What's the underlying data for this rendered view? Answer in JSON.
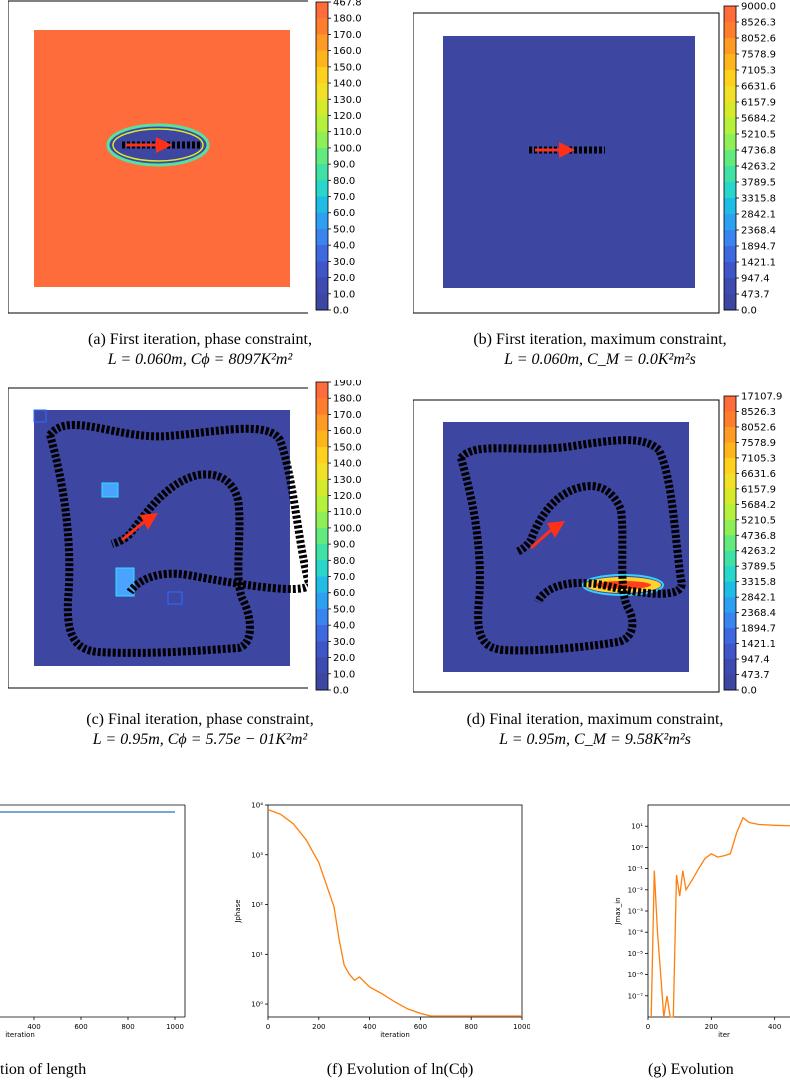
{
  "colorbars": {
    "a": [
      "467.8",
      "180.0",
      "170.0",
      "160.0",
      "150.0",
      "140.0",
      "130.0",
      "120.0",
      "110.0",
      "100.0",
      "90.0",
      "80.0",
      "70.0",
      "60.0",
      "50.0",
      "40.0",
      "30.0",
      "20.0",
      "10.0",
      "0.0"
    ],
    "b": [
      "9000.0",
      "8526.3",
      "8052.6",
      "7578.9",
      "7105.3",
      "6631.6",
      "6157.9",
      "5684.2",
      "5210.5",
      "4736.8",
      "4263.2",
      "3789.5",
      "3315.8",
      "2842.1",
      "2368.4",
      "1894.7",
      "1421.1",
      "947.4",
      "473.7",
      "0.0"
    ],
    "c": [
      "190.0",
      "180.0",
      "170.0",
      "160.0",
      "150.0",
      "140.0",
      "130.0",
      "120.0",
      "110.0",
      "100.0",
      "90.0",
      "80.0",
      "70.0",
      "60.0",
      "50.0",
      "40.0",
      "30.0",
      "20.0",
      "10.0",
      "0.0"
    ],
    "d": [
      "17107.9",
      "8526.3",
      "8052.6",
      "7578.9",
      "7105.3",
      "6631.6",
      "6157.9",
      "5684.2",
      "5210.5",
      "4736.8",
      "4263.2",
      "3789.5",
      "3315.8",
      "2842.1",
      "2368.4",
      "1894.7",
      "1421.1",
      "947.4",
      "473.7",
      "0.0"
    ]
  },
  "captions": {
    "a1": "(a) First iteration, phase constraint,",
    "a2": "L = 0.060m, Cϕ = 8097K²m²",
    "b1": "(b) First iteration, maximum constraint,",
    "b2": "L = 0.060m, C_M = 0.0K²m²s",
    "c1": "(c) Final iteration, phase constraint,",
    "c2": "L = 0.95m, Cϕ = 5.75e − 01K²m²",
    "d1": "(d) Final iteration, maximum constraint,",
    "d2": "L = 0.95m, C_M = 9.58K²m²s",
    "e": "tion of length",
    "f": "(f) Evolution of ln(Cϕ)",
    "g": "(g) Evolution"
  },
  "chart_data": [
    {
      "type": "line",
      "panel": "e",
      "x_ticks": [
        "400",
        "600",
        "800",
        "1000"
      ],
      "xlabel": "iteration",
      "x": [
        0,
        1000
      ],
      "values": [
        0.95,
        0.95
      ],
      "color": "#1f77b4"
    },
    {
      "type": "line",
      "panel": "f",
      "yscale": "log",
      "ylabel": "Jphase",
      "xlabel": "iteration",
      "x_ticks": [
        "0",
        "200",
        "400",
        "600",
        "800",
        "1000"
      ],
      "y_ticks": [
        "10⁰",
        "10¹",
        "10²",
        "10³",
        "10⁴"
      ],
      "xlim": [
        0,
        1000
      ],
      "ylim": [
        0.55,
        10000
      ],
      "x": [
        0,
        50,
        100,
        150,
        200,
        230,
        260,
        280,
        300,
        320,
        340,
        360,
        400,
        450,
        500,
        550,
        600,
        640,
        700,
        800,
        900,
        1000
      ],
      "values": [
        8097,
        6500,
        4200,
        2000,
        700,
        250,
        90,
        20,
        6,
        4,
        3,
        3.5,
        2.2,
        1.6,
        1.1,
        0.8,
        0.65,
        0.575,
        0.575,
        0.575,
        0.575,
        0.575
      ],
      "color": "#ff7f0e"
    },
    {
      "type": "line",
      "panel": "g",
      "yscale": "log",
      "ylabel": "Jmax_in",
      "xlabel": "iter",
      "x_ticks": [
        "0",
        "200",
        "400"
      ],
      "y_ticks": [
        "10⁻⁷",
        "10⁻⁶",
        "10⁻⁵",
        "10⁻⁴",
        "10⁻³",
        "10⁻²",
        "10⁻¹",
        "10⁰",
        "10¹"
      ],
      "xlim": [
        0,
        480
      ],
      "ylim": [
        1e-08,
        100
      ],
      "x": [
        10,
        20,
        30,
        40,
        50,
        60,
        70,
        80,
        90,
        100,
        110,
        120,
        140,
        160,
        180,
        200,
        220,
        240,
        260,
        280,
        300,
        320,
        350,
        400,
        450,
        480
      ],
      "values": [
        1e-08,
        0.08,
        0.0001,
        1e-06,
        1e-08,
        1e-07,
        1e-08,
        1e-08,
        0.05,
        0.005,
        0.08,
        0.01,
        0.03,
        0.1,
        0.3,
        0.5,
        0.35,
        0.4,
        0.5,
        5,
        25,
        15,
        12,
        11,
        10.5,
        10
      ],
      "color": "#ff7f0e"
    }
  ]
}
